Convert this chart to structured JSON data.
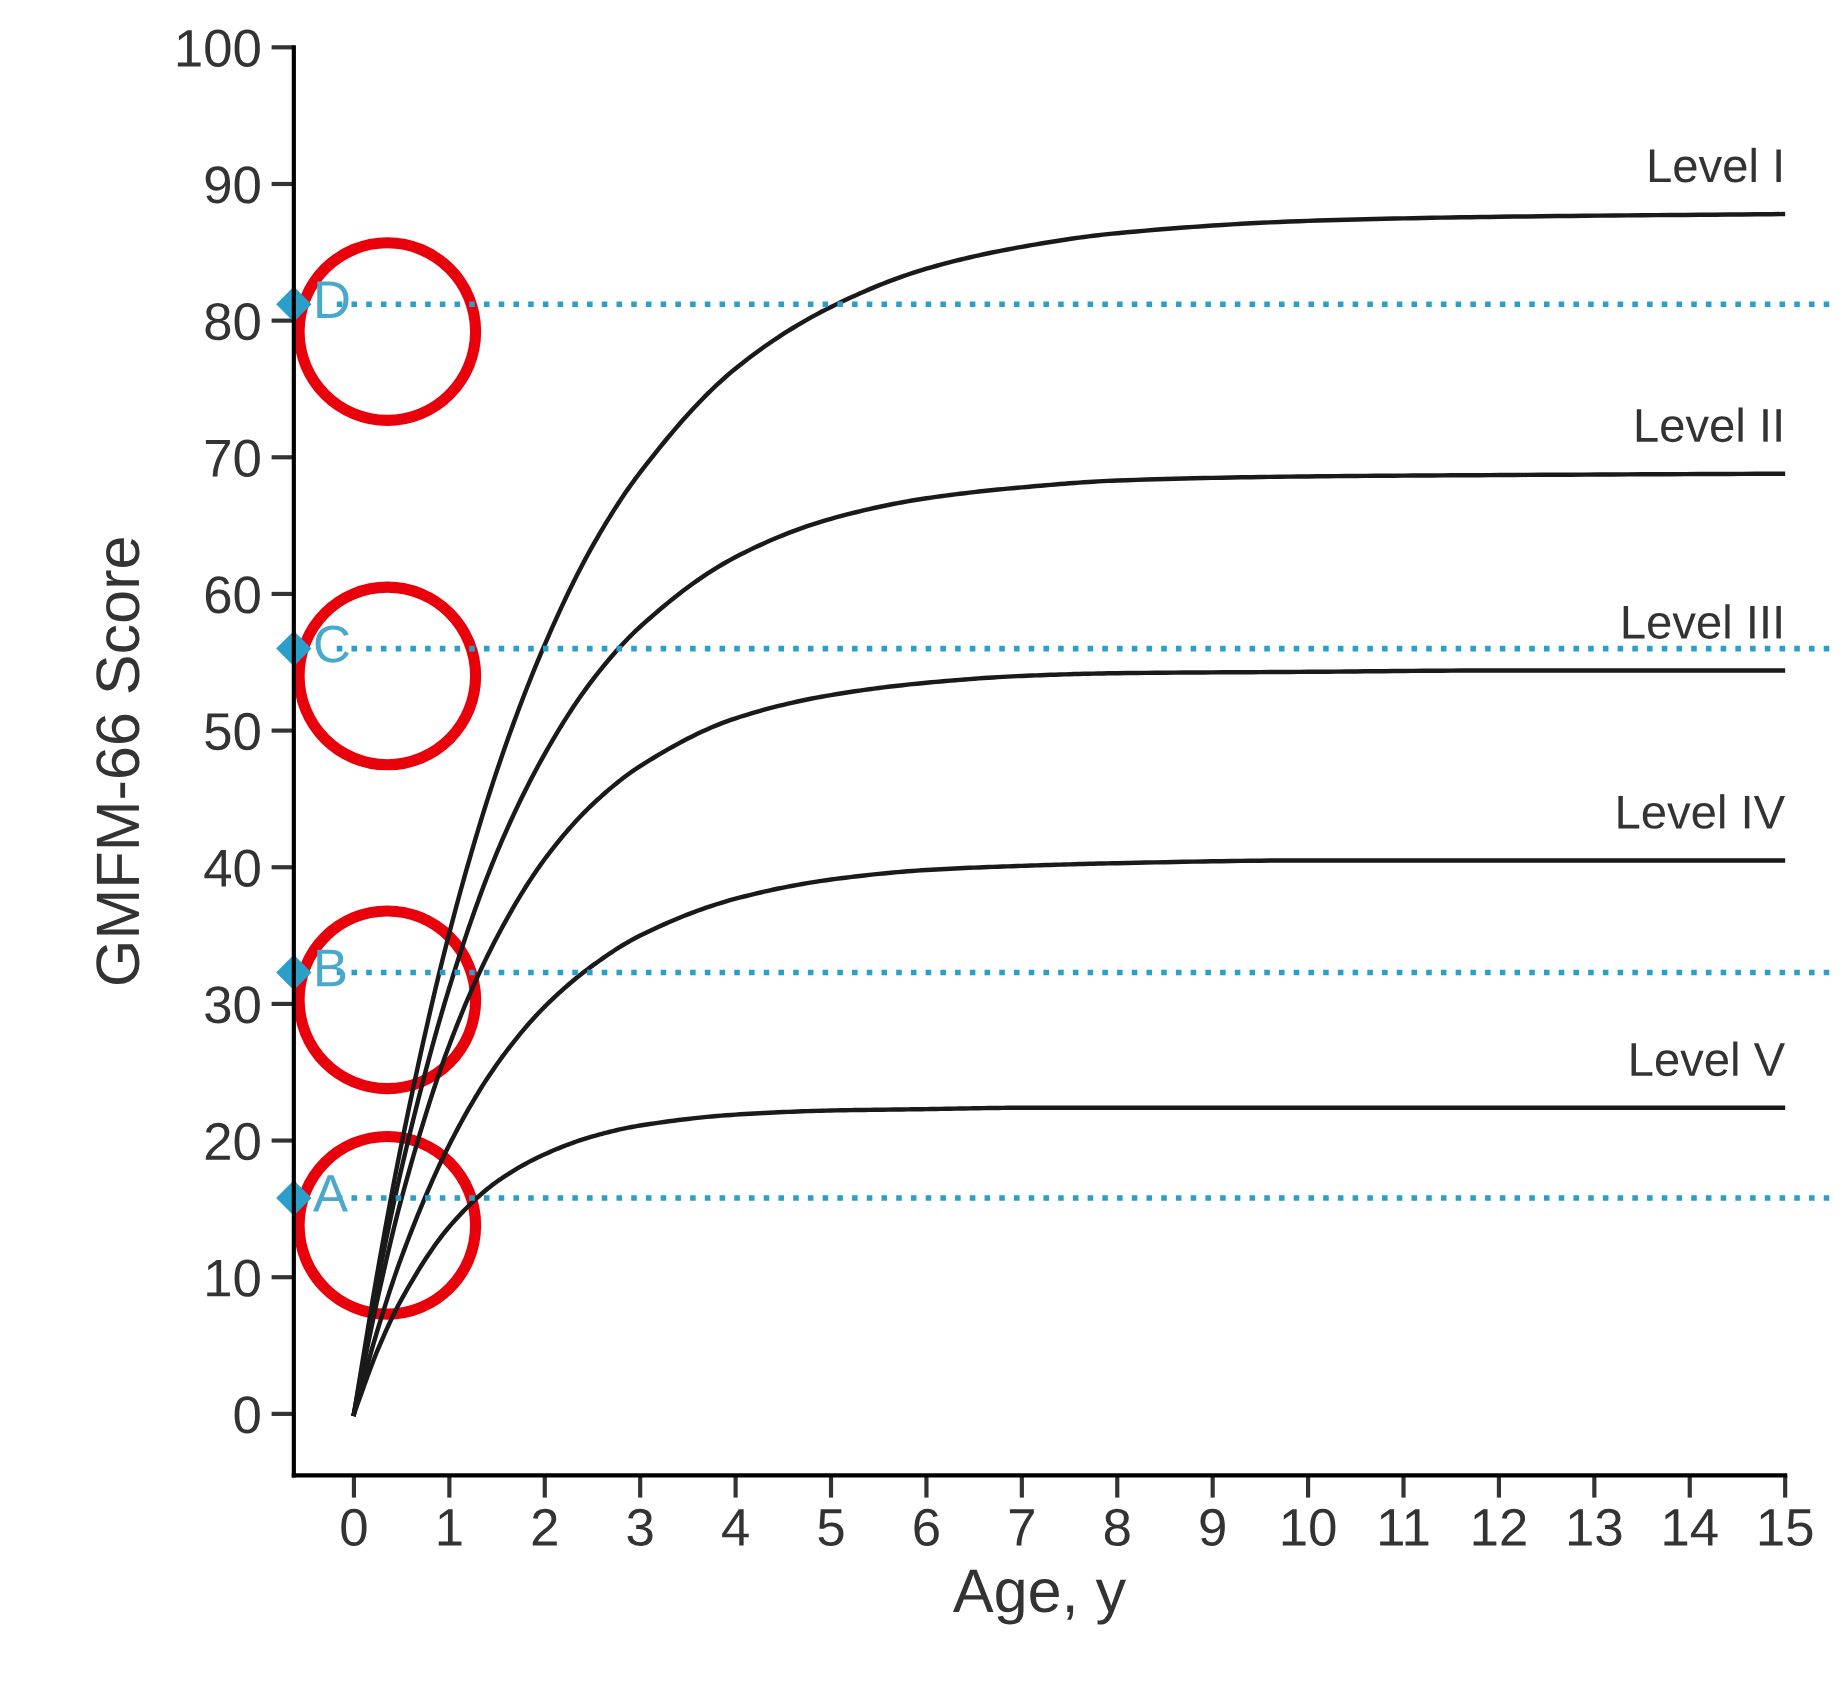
{
  "chart_data": {
    "type": "line",
    "xlabel": "Age, y",
    "ylabel": "GMFM-66 Score",
    "x": [
      0,
      0.25,
      0.5,
      1,
      1.5,
      2,
      2.5,
      3,
      4,
      5,
      6,
      7,
      8,
      10,
      12,
      15
    ],
    "series": [
      {
        "name": "Level I",
        "color": "#1a1a1a",
        "values": [
          0,
          10.5,
          19.8,
          35.2,
          47.1,
          56.3,
          63.5,
          68.9,
          76.5,
          81.0,
          83.8,
          85.4,
          86.4,
          87.3,
          87.6,
          87.8
        ]
      },
      {
        "name": "Level II",
        "color": "#1a1a1a",
        "values": [
          0,
          9.7,
          18.0,
          31.2,
          41.1,
          48.3,
          53.7,
          57.6,
          62.7,
          65.5,
          67.0,
          67.8,
          68.3,
          68.6,
          68.7,
          68.8
        ]
      },
      {
        "name": "Level III",
        "color": "#1a1a1a",
        "values": [
          0,
          8.5,
          15.8,
          27.0,
          34.9,
          40.6,
          44.6,
          47.4,
          50.9,
          52.6,
          53.5,
          54.0,
          54.2,
          54.3,
          54.4,
          54.4
        ]
      },
      {
        "name": "Level IV",
        "color": "#1a1a1a",
        "values": [
          0,
          6.2,
          11.5,
          19.7,
          25.6,
          29.8,
          32.8,
          35.0,
          37.7,
          39.1,
          39.8,
          40.1,
          40.3,
          40.5,
          40.5,
          40.5
        ]
      },
      {
        "name": "Level V",
        "color": "#1a1a1a",
        "values": [
          0,
          4.7,
          8.4,
          13.7,
          17.0,
          19.0,
          20.3,
          21.1,
          21.9,
          22.2,
          22.3,
          22.4,
          22.4,
          22.4,
          22.4,
          22.4
        ]
      }
    ],
    "ref_lines": [
      {
        "axis": "y",
        "value": 81.2,
        "label": "D",
        "color": "#2a9fc9",
        "line_style": "dotted"
      },
      {
        "axis": "y",
        "value": 56,
        "label": "C",
        "color": "#2a9fc9",
        "line_style": "dotted"
      },
      {
        "axis": "y",
        "value": 32.3,
        "label": "B",
        "color": "#2a9fc9",
        "line_style": "dotted"
      },
      {
        "axis": "y",
        "value": 15.8,
        "label": "A",
        "color": "#2a9fc9",
        "line_style": "dotted"
      }
    ],
    "xlim": [
      -0.63,
      15
    ],
    "ylim": [
      -4.5,
      100
    ],
    "xticks": [
      0,
      1,
      2,
      3,
      4,
      5,
      6,
      7,
      8,
      9,
      10,
      11,
      12,
      13,
      14,
      15
    ],
    "yticks": [
      0,
      10,
      20,
      30,
      40,
      50,
      60,
      70,
      80,
      90,
      100
    ],
    "grid": false,
    "legend": false,
    "line_style": "solid"
  }
}
